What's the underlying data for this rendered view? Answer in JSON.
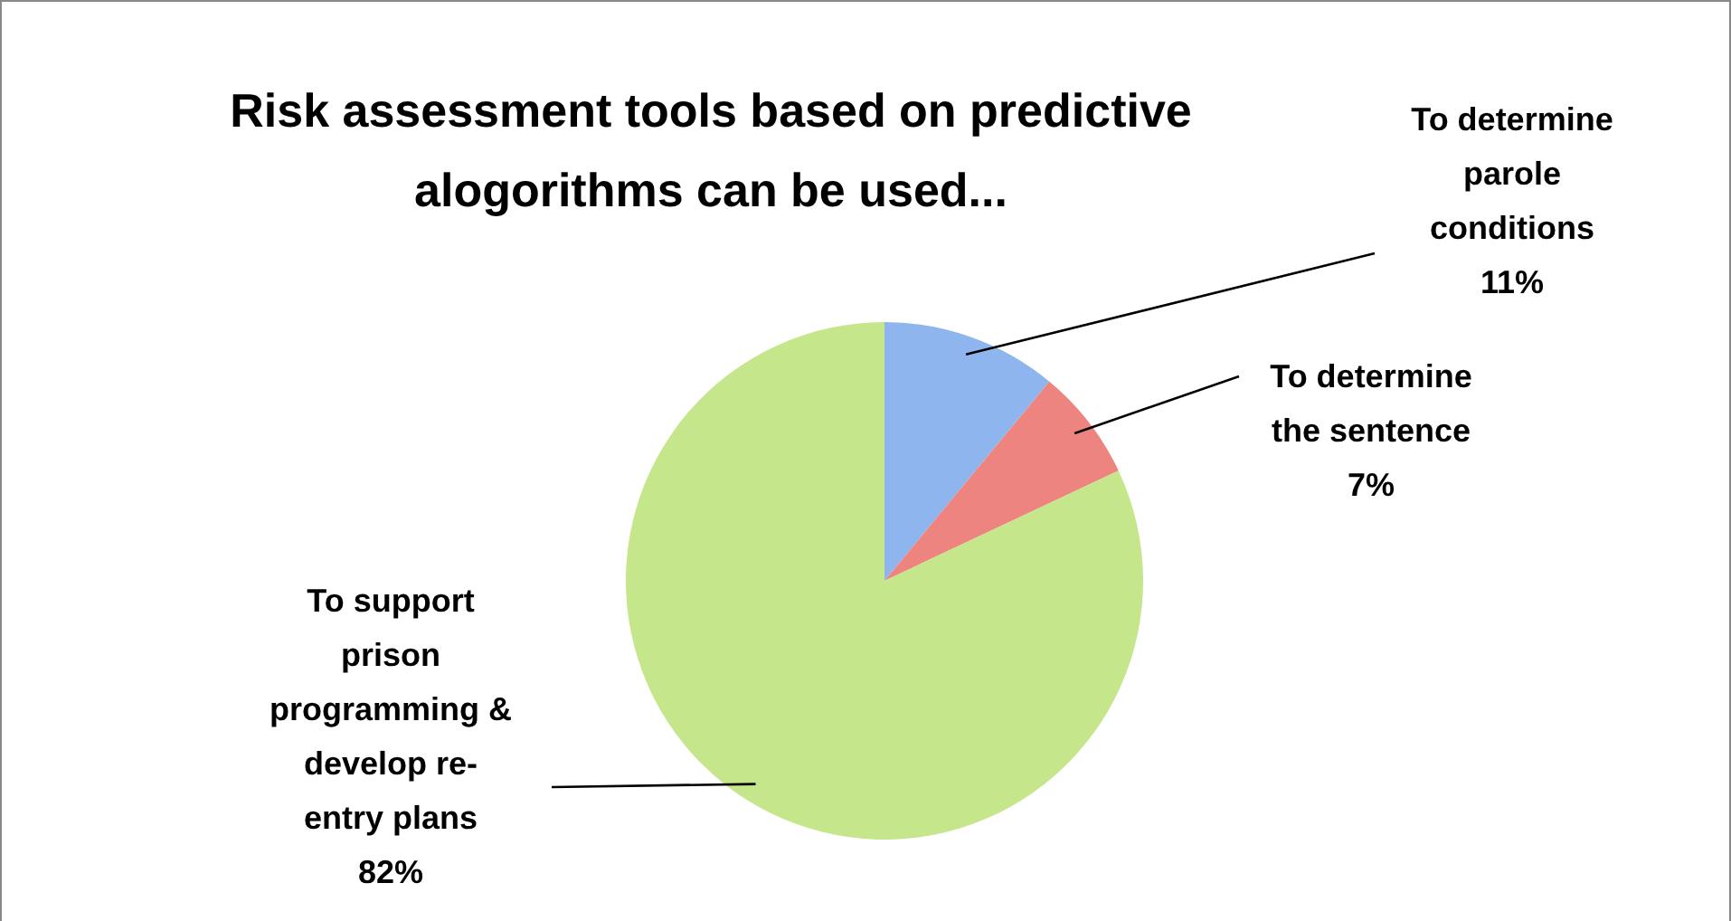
{
  "chart_data": {
    "type": "pie",
    "title": "Risk assessment tools based on predictive alogorithms can be used...",
    "categories": [
      "To determine parole conditions",
      "To determine the sentence",
      "To support prison programming & develop re-entry plans"
    ],
    "values": [
      11,
      7,
      82
    ],
    "colors": [
      "#8fb5ef",
      "#ee8480",
      "#c5e68a"
    ],
    "value_labels": [
      "11%",
      "7%",
      "82%"
    ]
  }
}
